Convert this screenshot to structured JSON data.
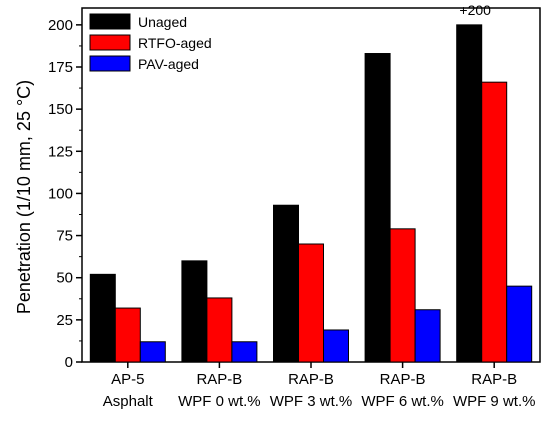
{
  "chart_data": {
    "type": "bar",
    "categories": [
      [
        "AP-5",
        "Asphalt"
      ],
      [
        "RAP-B",
        "WPF 0 wt.%"
      ],
      [
        "RAP-B",
        "WPF 3 wt.%"
      ],
      [
        "RAP-B",
        "WPF 6 wt.%"
      ],
      [
        "RAP-B",
        "WPF 9 wt.%"
      ]
    ],
    "series": [
      {
        "name": "Unaged",
        "color": "#000000",
        "values": [
          52,
          60,
          93,
          183,
          200
        ]
      },
      {
        "name": "RTFO-aged",
        "color": "#ff0000",
        "values": [
          32,
          38,
          70,
          79,
          166
        ]
      },
      {
        "name": "PAV-aged",
        "color": "#0000ff",
        "values": [
          12,
          12,
          19,
          31,
          45
        ]
      }
    ],
    "ylabel": "Penetration (1/10 mm, 25 °C)",
    "ylim": [
      0,
      210
    ],
    "yticks": [
      0,
      25,
      50,
      75,
      100,
      125,
      150,
      175,
      200
    ],
    "legend_position": "top-left",
    "grid": false,
    "annotations": [
      {
        "text": "+200",
        "category_index": 4,
        "series_index": 0
      }
    ]
  }
}
